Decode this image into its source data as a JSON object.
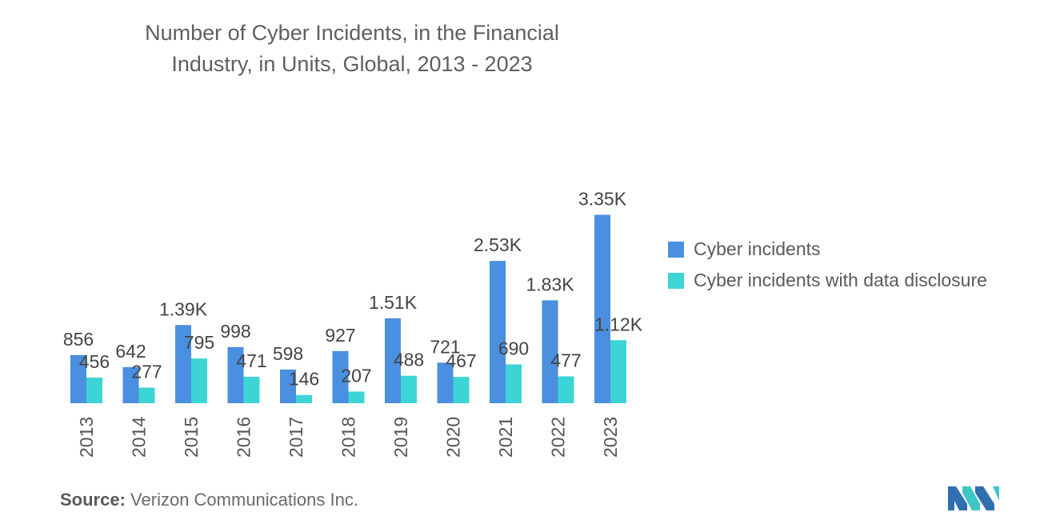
{
  "title_line1": "Number of Cyber Incidents, in the Financial",
  "title_line2": "Industry, in Units, Global, 2013 - 2023",
  "source_label": "Source:",
  "source_text": "Verizon Communications Inc.",
  "colors": {
    "series1": "#4a8fe0",
    "series2": "#3dd4d6"
  },
  "chart_data": {
    "type": "bar",
    "categories": [
      "2013",
      "2014",
      "2015",
      "2016",
      "2017",
      "2018",
      "2019",
      "2020",
      "2021",
      "2022",
      "2023"
    ],
    "series": [
      {
        "name": "Cyber incidents",
        "values": [
          856,
          642,
          1390,
          998,
          598,
          927,
          1510,
          721,
          2530,
          1830,
          3350
        ],
        "labels": [
          "856",
          "642",
          "1.39K",
          "998",
          "598",
          "927",
          "1.51K",
          "721",
          "2.53K",
          "1.83K",
          "3.35K"
        ]
      },
      {
        "name": "Cyber incidents with data disclosure",
        "values": [
          456,
          277,
          795,
          471,
          146,
          207,
          488,
          467,
          690,
          477,
          1120
        ],
        "labels": [
          "456",
          "277",
          "795",
          "471",
          "146",
          "207",
          "488",
          "467",
          "690",
          "477",
          "1.12K"
        ]
      }
    ],
    "legend_position": "right",
    "grid": false
  }
}
